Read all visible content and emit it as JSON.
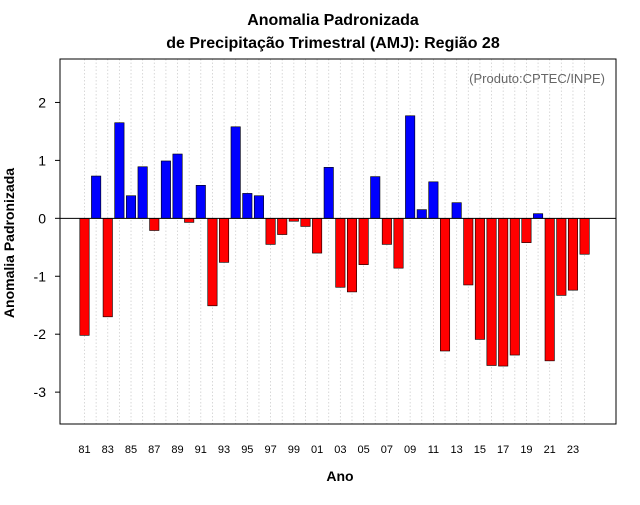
{
  "chart_data": {
    "type": "bar",
    "title_line1": "Anomalia Padronizada",
    "title_line2": "de Precipitação Trimestral (AMJ): Região 28",
    "xlabel": "Ano",
    "ylabel": "Anomalia Padronizada",
    "credit": "(Produto:CPTEC/INPE)",
    "ylim": [
      -3.55,
      2.75
    ],
    "yticks": [
      -3,
      -2,
      -1,
      0,
      1,
      2
    ],
    "years": [
      1981,
      1982,
      1983,
      1984,
      1985,
      1986,
      1987,
      1988,
      1989,
      1990,
      1991,
      1992,
      1993,
      1994,
      1995,
      1996,
      1997,
      1998,
      1999,
      2000,
      2001,
      2002,
      2003,
      2004,
      2005,
      2006,
      2007,
      2008,
      2009,
      2010,
      2011,
      2012,
      2013,
      2014,
      2015,
      2016,
      2017,
      2018,
      2019,
      2020,
      2021,
      2022,
      2023,
      2024
    ],
    "tick_labels": [
      "81",
      "83",
      "85",
      "87",
      "89",
      "91",
      "93",
      "95",
      "97",
      "99",
      "01",
      "03",
      "05",
      "07",
      "09",
      "11",
      "13",
      "15",
      "17",
      "19",
      "21",
      "23"
    ],
    "values": [
      -2.02,
      0.73,
      -1.7,
      1.65,
      0.39,
      0.89,
      -0.21,
      0.99,
      1.11,
      -0.07,
      0.57,
      -1.51,
      -0.76,
      1.58,
      0.43,
      0.39,
      -0.45,
      -0.28,
      -0.05,
      -0.14,
      -0.6,
      0.88,
      -1.19,
      -1.27,
      -0.8,
      0.72,
      -0.45,
      -0.86,
      1.77,
      0.15,
      0.63,
      -2.29,
      0.27,
      -1.15,
      -2.09,
      -2.54,
      -2.55,
      -2.36,
      -0.42,
      0.08,
      -2.46,
      -1.33,
      -1.24,
      -0.62
    ],
    "positive_color": "#0000ff",
    "negative_color": "#ff0000"
  }
}
